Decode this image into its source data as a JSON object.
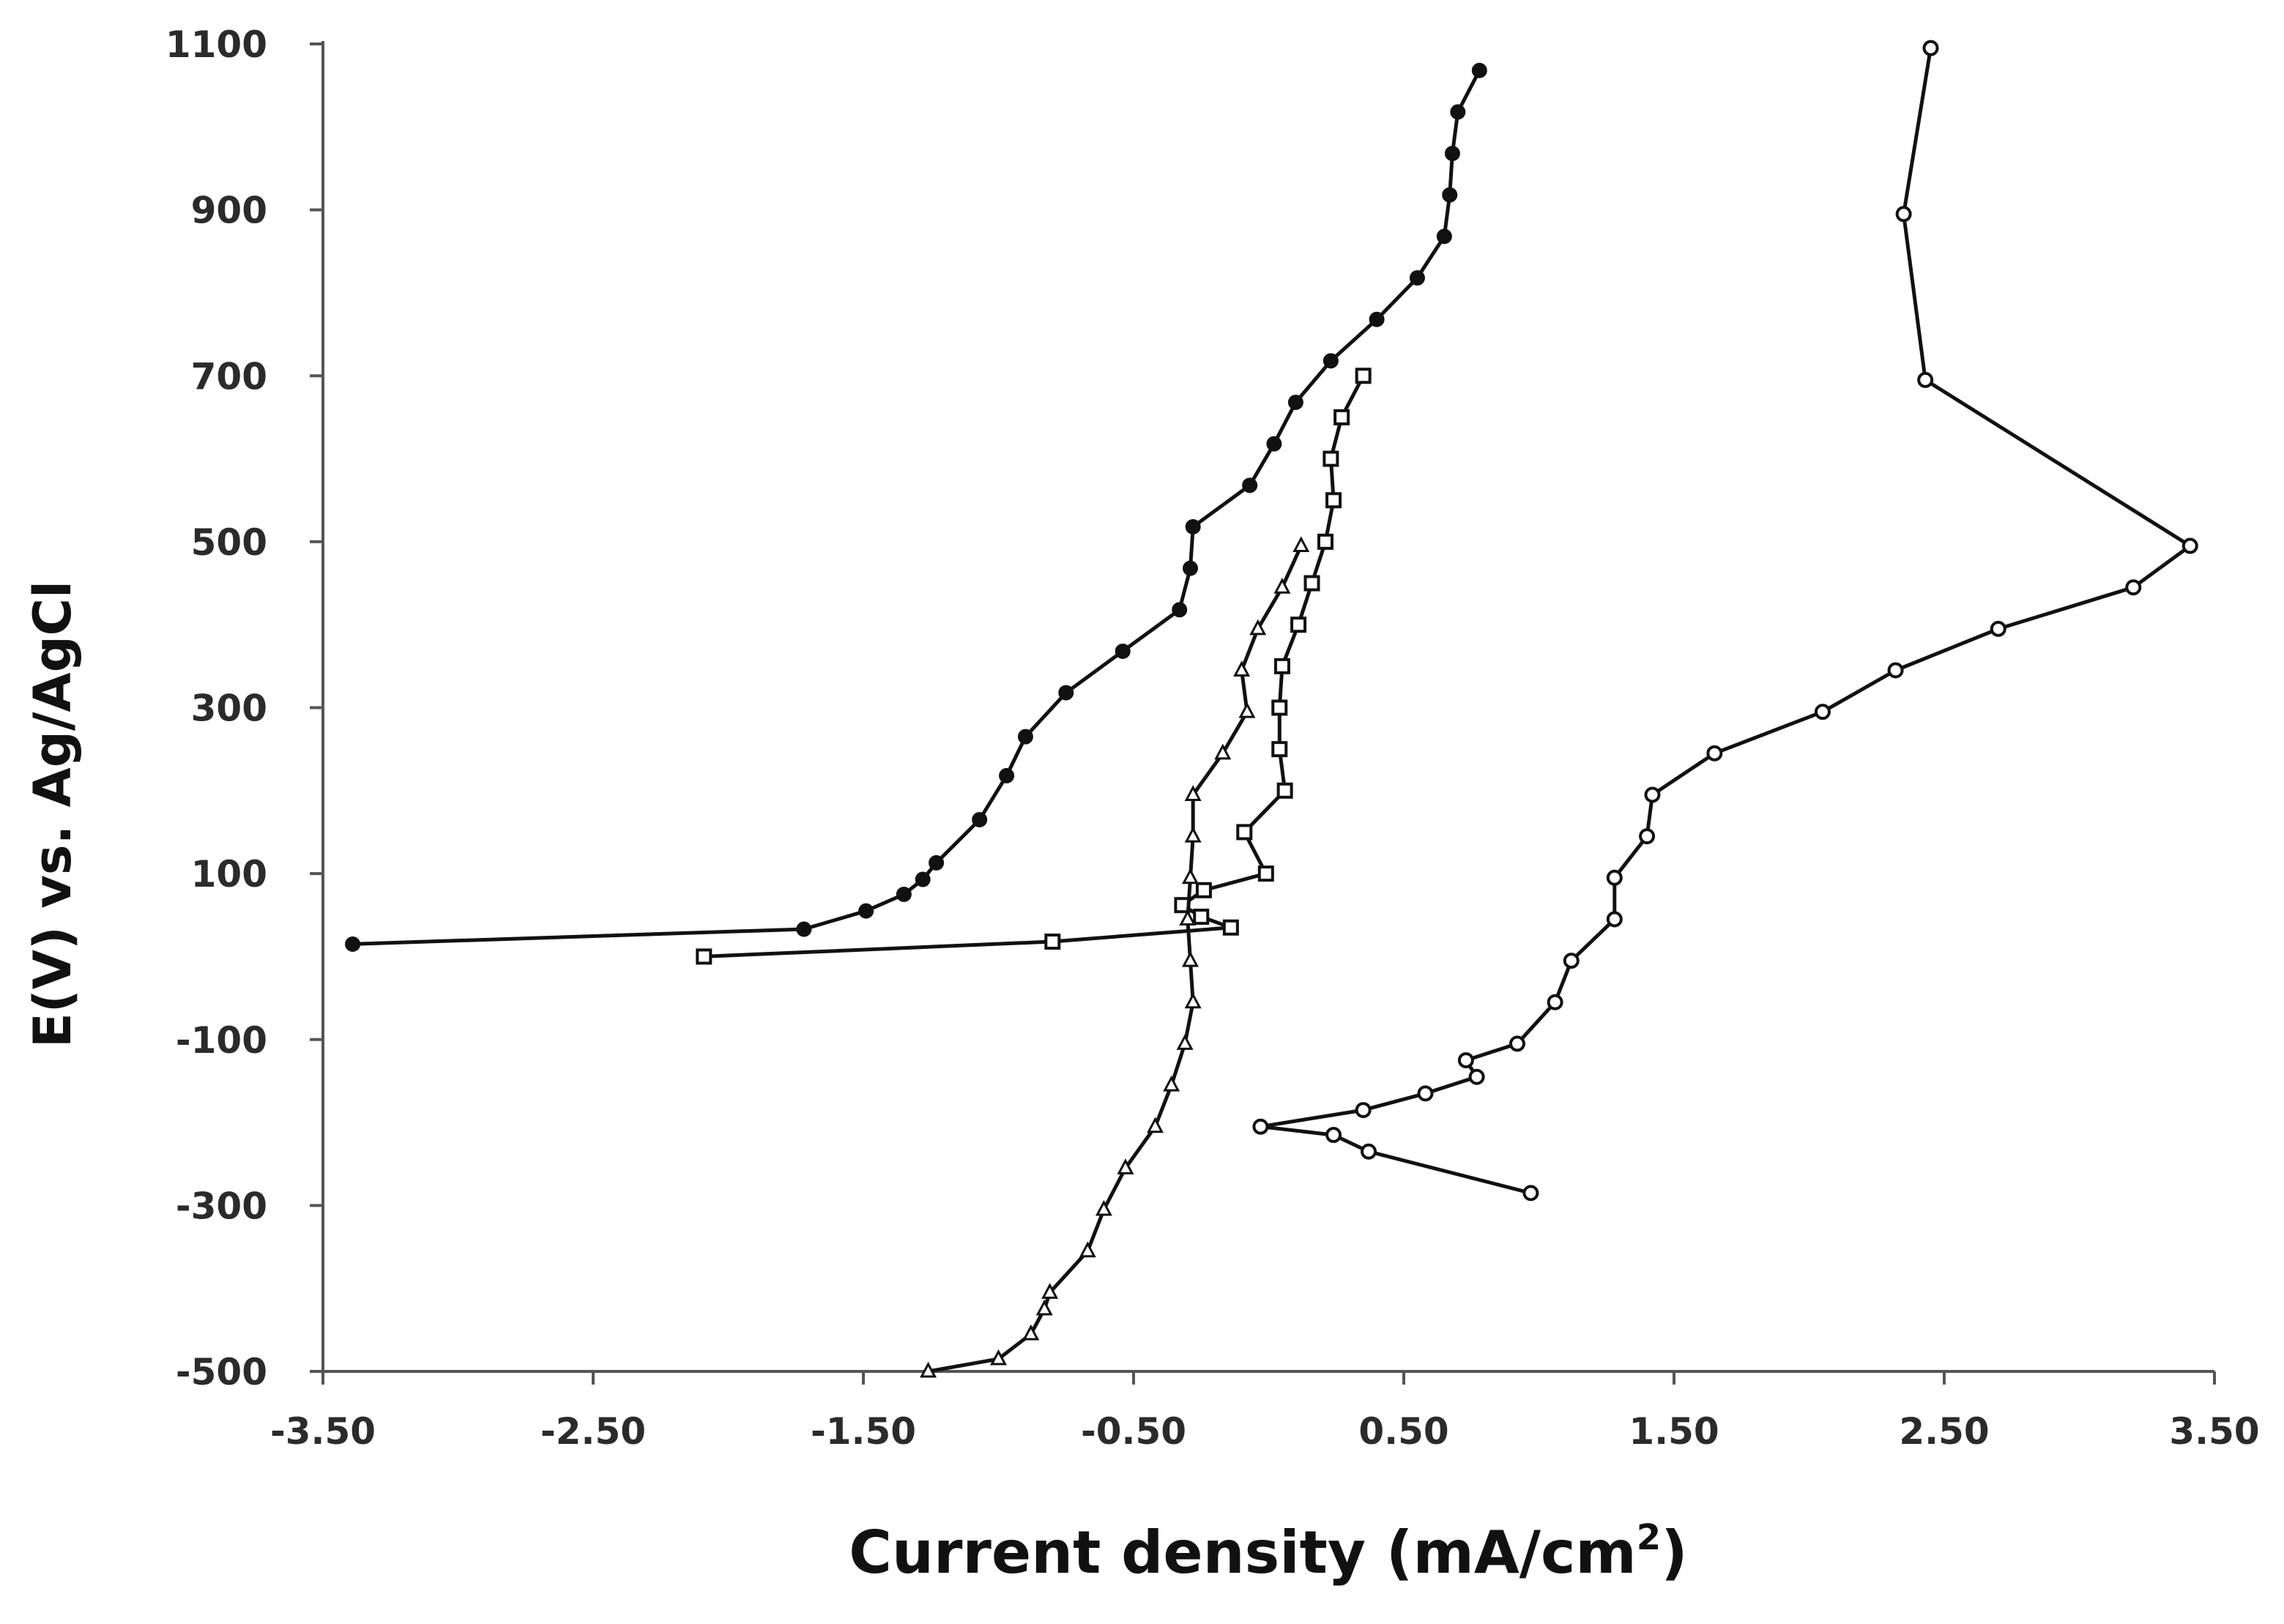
{
  "chart_data": {
    "type": "line",
    "title": "",
    "xlabel": "Current density (mA/cm",
    "xlabel_sup": "2",
    "xlabel_close": ")",
    "ylabel": "E(V) vs. Ag/AgCl",
    "xlim": [
      -3.5,
      3.5
    ],
    "ylim": [
      -500,
      1100
    ],
    "xticks": [
      "-3.50",
      "-2.50",
      "-1.50",
      "-0.50",
      "0.50",
      "1.50",
      "2.50",
      "3.50"
    ],
    "yticks": [
      "1100",
      "900",
      "700",
      "500",
      "300",
      "100",
      "-100",
      "-300",
      "-500"
    ],
    "grid": false,
    "legend": "none",
    "line_color": "#111111",
    "series": [
      {
        "marker": "filled-circle",
        "points": [
          [
            -3.39,
            15
          ],
          [
            -1.72,
            33
          ],
          [
            -1.49,
            55
          ],
          [
            -1.35,
            75
          ],
          [
            -1.28,
            93
          ],
          [
            -1.23,
            113
          ],
          [
            -1.07,
            165
          ],
          [
            -0.97,
            218
          ],
          [
            -0.9,
            265
          ],
          [
            -0.75,
            318
          ],
          [
            -0.54,
            368
          ],
          [
            -0.33,
            418
          ],
          [
            -0.29,
            468
          ],
          [
            -0.28,
            518
          ],
          [
            -0.07,
            568
          ],
          [
            0.02,
            618
          ],
          [
            0.1,
            668
          ],
          [
            0.23,
            718
          ],
          [
            0.4,
            768
          ],
          [
            0.55,
            818
          ],
          [
            0.65,
            868
          ],
          [
            0.67,
            918
          ],
          [
            0.68,
            968
          ],
          [
            0.7,
            1018
          ],
          [
            0.78,
            1068
          ]
        ]
      },
      {
        "marker": "open-square",
        "points": [
          [
            -2.09,
            0
          ],
          [
            -0.8,
            18
          ],
          [
            -0.14,
            35
          ],
          [
            -0.25,
            48
          ],
          [
            -0.32,
            62
          ],
          [
            -0.24,
            80
          ],
          [
            -0.01,
            100
          ],
          [
            -0.09,
            150
          ],
          [
            0.06,
            200
          ],
          [
            0.04,
            250
          ],
          [
            0.04,
            300
          ],
          [
            0.05,
            350
          ],
          [
            0.11,
            400
          ],
          [
            0.16,
            450
          ],
          [
            0.21,
            500
          ],
          [
            0.24,
            550
          ],
          [
            0.23,
            600
          ],
          [
            0.27,
            650
          ],
          [
            0.35,
            700
          ]
        ]
      },
      {
        "marker": "open-triangle",
        "points": [
          [
            -1.26,
            -500
          ],
          [
            -1.0,
            -485
          ],
          [
            -0.88,
            -455
          ],
          [
            -0.83,
            -425
          ],
          [
            -0.81,
            -405
          ],
          [
            -0.67,
            -355
          ],
          [
            -0.61,
            -305
          ],
          [
            -0.53,
            -255
          ],
          [
            -0.42,
            -205
          ],
          [
            -0.36,
            -155
          ],
          [
            -0.31,
            -105
          ],
          [
            -0.28,
            -55
          ],
          [
            -0.29,
            -5
          ],
          [
            -0.3,
            45
          ],
          [
            -0.29,
            95
          ],
          [
            -0.28,
            145
          ],
          [
            -0.28,
            195
          ],
          [
            -0.17,
            245
          ],
          [
            -0.08,
            295
          ],
          [
            -0.1,
            345
          ],
          [
            -0.04,
            395
          ],
          [
            0.05,
            445
          ],
          [
            0.12,
            495
          ]
        ]
      },
      {
        "marker": "open-circle",
        "points": [
          [
            0.97,
            -285
          ],
          [
            0.37,
            -235
          ],
          [
            0.24,
            -215
          ],
          [
            -0.03,
            -205
          ],
          [
            0.35,
            -185
          ],
          [
            0.58,
            -165
          ],
          [
            0.77,
            -145
          ],
          [
            0.73,
            -125
          ],
          [
            0.92,
            -105
          ],
          [
            1.06,
            -55
          ],
          [
            1.12,
            -5
          ],
          [
            1.28,
            45
          ],
          [
            1.28,
            95
          ],
          [
            1.4,
            145
          ],
          [
            1.42,
            195
          ],
          [
            1.65,
            245
          ],
          [
            2.05,
            295
          ],
          [
            2.32,
            345
          ],
          [
            2.7,
            395
          ],
          [
            3.2,
            445
          ],
          [
            3.41,
            495
          ],
          [
            2.43,
            695
          ],
          [
            2.35,
            895
          ],
          [
            2.45,
            1095
          ]
        ]
      }
    ]
  }
}
